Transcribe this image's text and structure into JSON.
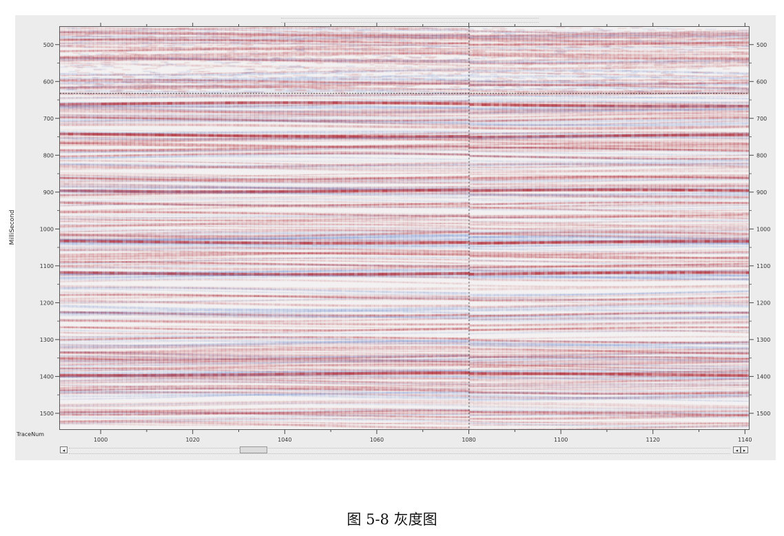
{
  "caption": "图 5-8  灰度图",
  "y_axis": {
    "label": "MilliSecond",
    "ticks": [
      "500",
      "600",
      "700",
      "800",
      "900",
      "1000",
      "1100",
      "1200",
      "1300",
      "1400",
      "1500"
    ]
  },
  "x_axis": {
    "label": "TraceNum",
    "ticks": [
      "1000",
      "1020",
      "1040",
      "1060",
      "1080",
      "1100",
      "1120",
      "1140"
    ]
  },
  "seismic": {
    "trace_range": [
      991,
      1141
    ],
    "time_range_ms": [
      450,
      1545
    ],
    "crosshair_trace": 1080,
    "crosshair_time_ms": 630,
    "positive_color": "#b4323c",
    "negative_color": "#6e8cd2",
    "background_color": "#f3f1f1",
    "strong_reflectors_ms": [
      660,
      745,
      895,
      1035,
      1120,
      1395
    ],
    "medium_reflectors_ms": [
      490,
      600,
      700,
      780,
      800,
      860,
      930,
      960,
      1095,
      1185,
      1230,
      1270,
      1300,
      1350,
      1440,
      1500
    ]
  },
  "scrollbar": {
    "left_arrow": "◂",
    "right_arrow_a": "◂",
    "right_arrow_b": "▸"
  }
}
